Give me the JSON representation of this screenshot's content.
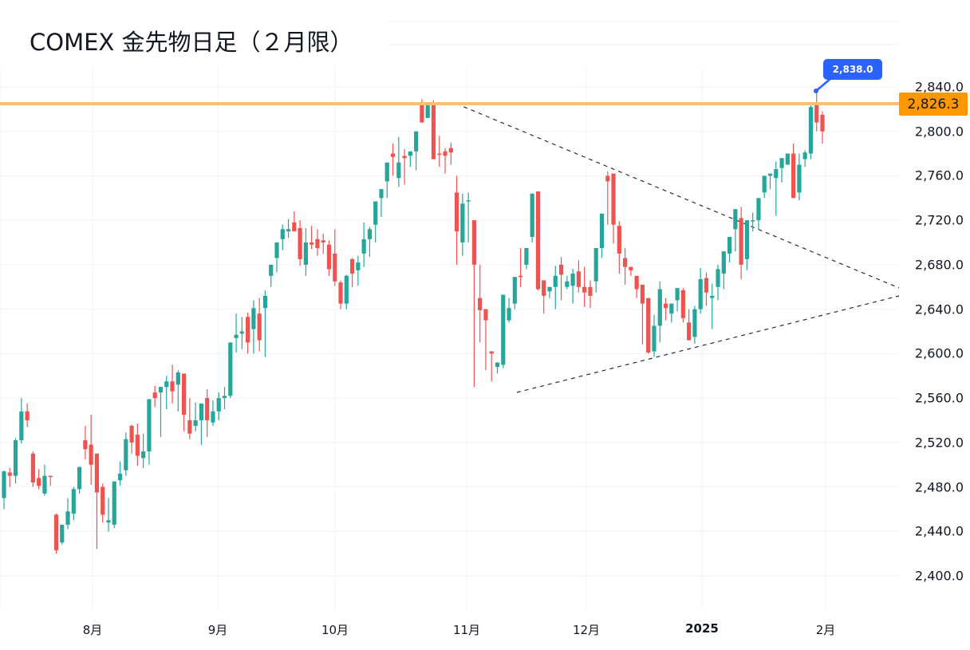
{
  "title": "COMEX 金先物日足（２月限）",
  "colors": {
    "up": "#26a69a",
    "down": "#ef5350",
    "resistance_line": "#ffc06b",
    "price_tag_bg": "#ff9800",
    "callout_bg": "#2962ff",
    "grid": "#f0f3fa",
    "trendline": "#2a2e39"
  },
  "price_scale": {
    "labels": [
      "2,840.0",
      "2,800.0",
      "2,760.0",
      "2,720.0",
      "2,680.0",
      "2,640.0",
      "2,600.0",
      "2,560.0",
      "2,520.0",
      "2,480.0",
      "2,440.0",
      "2,400.0"
    ],
    "current_price_tag": "2,826.3"
  },
  "time_scale": {
    "labels": [
      "8月",
      "9月",
      "10月",
      "11月",
      "12月",
      "2025",
      "2月"
    ]
  },
  "callout": {
    "label": "2,838.0"
  },
  "chart_data": {
    "type": "candlestick",
    "title": "COMEX 金先物日足（２月限）",
    "xlabel": "",
    "ylabel": "",
    "ylim": [
      2380,
      2860
    ],
    "y_ticks": [
      2400,
      2440,
      2480,
      2520,
      2560,
      2600,
      2640,
      2680,
      2720,
      2760,
      2800,
      2840
    ],
    "x_ticks": [
      "8月",
      "9月",
      "10月",
      "11月",
      "12月",
      "2025",
      "2月"
    ],
    "grid": true,
    "horizontal_line": {
      "price": 2826.3,
      "label": "2,826.3",
      "color": "#ffc06b"
    },
    "annotation": {
      "text": "2,838.0",
      "price": 2838.0,
      "type": "high marker"
    },
    "trendlines": [
      {
        "name": "upper (descending)",
        "from": {
          "x": "2024-10-30",
          "price": 2826
        },
        "to": {
          "x": "2025-02-20",
          "price": 2659
        }
      },
      {
        "name": "lower (ascending)",
        "from": {
          "x": "2024-11-14",
          "price": 2565
        },
        "to": {
          "x": "2025-02-20",
          "price": 2652
        }
      }
    ],
    "ohlc_approx": [
      [
        2470,
        2495,
        2460,
        2494
      ],
      [
        2493,
        2497,
        2480,
        2490
      ],
      [
        2490,
        2524,
        2483,
        2522
      ],
      [
        2522,
        2560,
        2519,
        2548
      ],
      [
        2548,
        2555,
        2534,
        2540
      ],
      [
        2510,
        2512,
        2480,
        2484
      ],
      [
        2488,
        2496,
        2478,
        2481
      ],
      [
        2474,
        2500,
        2472,
        2490
      ],
      [
        2490,
        2489,
        2481,
        2489
      ],
      [
        2455,
        2456,
        2420,
        2423
      ],
      [
        2430,
        2446,
        2428,
        2446
      ],
      [
        2446,
        2470,
        2442,
        2458
      ],
      [
        2456,
        2480,
        2450,
        2478
      ],
      [
        2478,
        2494,
        2474,
        2498
      ],
      [
        2522,
        2535,
        2505,
        2514
      ],
      [
        2518,
        2545,
        2482,
        2500
      ],
      [
        2510,
        2507,
        2424,
        2475
      ],
      [
        2480,
        2483,
        2448,
        2455
      ],
      [
        2448,
        2470,
        2440,
        2450
      ],
      [
        2446,
        2480,
        2443,
        2485
      ],
      [
        2486,
        2503,
        2481,
        2492
      ],
      [
        2495,
        2529,
        2490,
        2523
      ],
      [
        2535,
        2536,
        2510,
        2520
      ],
      [
        2527,
        2537,
        2499,
        2508
      ],
      [
        2506,
        2528,
        2497,
        2512
      ],
      [
        2512,
        2537,
        2500,
        2559
      ],
      [
        2565,
        2571,
        2552,
        2560
      ],
      [
        2565,
        2567,
        2525,
        2570
      ],
      [
        2570,
        2580,
        2550,
        2575
      ],
      [
        2575,
        2590,
        2555,
        2566
      ],
      [
        2572,
        2585,
        2548,
        2583
      ],
      [
        2582,
        2577,
        2530,
        2545
      ],
      [
        2540,
        2560,
        2523,
        2528
      ],
      [
        2535,
        2556,
        2530,
        2540
      ],
      [
        2540,
        2552,
        2518,
        2555
      ],
      [
        2560,
        2568,
        2525,
        2540
      ],
      [
        2538,
        2558,
        2535,
        2548
      ],
      [
        2548,
        2565,
        2540,
        2560
      ],
      [
        2560,
        2570,
        2550,
        2562
      ],
      [
        2562,
        2606,
        2560,
        2610
      ],
      [
        2614,
        2636,
        2601,
        2617
      ],
      [
        2618,
        2633,
        2604,
        2620
      ],
      [
        2633,
        2637,
        2600,
        2610
      ],
      [
        2622,
        2648,
        2600,
        2641
      ],
      [
        2636,
        2650,
        2602,
        2612
      ],
      [
        2641,
        2657,
        2597,
        2652
      ],
      [
        2670,
        2675,
        2660,
        2680
      ],
      [
        2686,
        2690,
        2673,
        2700
      ],
      [
        2703,
        2716,
        2693,
        2712
      ],
      [
        2710,
        2721,
        2704,
        2712
      ],
      [
        2718,
        2728,
        2715,
        2710
      ],
      [
        2713,
        2720,
        2679,
        2685
      ],
      [
        2680,
        2713,
        2670,
        2700
      ],
      [
        2700,
        2715,
        2694,
        2698
      ],
      [
        2703,
        2712,
        2688,
        2695
      ],
      [
        2702,
        2708,
        2690,
        2700
      ],
      [
        2698,
        2702,
        2670,
        2676
      ],
      [
        2690,
        2712,
        2661,
        2665
      ],
      [
        2664,
        2666,
        2640,
        2645
      ],
      [
        2645,
        2671,
        2640,
        2670
      ],
      [
        2685,
        2686,
        2660,
        2672
      ],
      [
        2675,
        2688,
        2661,
        2682
      ],
      [
        2690,
        2718,
        2678,
        2703
      ],
      [
        2703,
        2714,
        2687,
        2712
      ],
      [
        2716,
        2725,
        2700,
        2737
      ],
      [
        2740,
        2748,
        2723,
        2748
      ],
      [
        2755,
        2770,
        2740,
        2772
      ],
      [
        2780,
        2789,
        2760,
        2777
      ],
      [
        2758,
        2795,
        2750,
        2772
      ],
      [
        2778,
        2784,
        2752,
        2776
      ],
      [
        2778,
        2778,
        2768,
        2782
      ],
      [
        2782,
        2800,
        2765,
        2800
      ],
      [
        2826,
        2829,
        2810,
        2808
      ],
      [
        2812,
        2826,
        2815,
        2826
      ],
      [
        2826,
        2828,
        2780,
        2775
      ],
      [
        2780,
        2796,
        2768,
        2779
      ],
      [
        2782,
        2785,
        2762,
        2778
      ],
      [
        2785,
        2790,
        2770,
        2781
      ],
      [
        2745,
        2760,
        2680,
        2710
      ],
      [
        2700,
        2744,
        2688,
        2735
      ],
      [
        2738,
        2745,
        2700,
        2738
      ],
      [
        2720,
        2720,
        2570,
        2680
      ],
      [
        2650,
        2680,
        2610,
        2639
      ],
      [
        2640,
        2610,
        2585,
        2630
      ],
      [
        2602,
        2592,
        2575,
        2600
      ],
      [
        2588,
        2591,
        2582,
        2592
      ],
      [
        2590,
        2630,
        2587,
        2653
      ],
      [
        2630,
        2650,
        2628,
        2641
      ],
      [
        2645,
        2665,
        2640,
        2669
      ],
      [
        2670,
        2695,
        2660,
        2669
      ],
      [
        2680,
        2687,
        2676,
        2695
      ],
      [
        2705,
        2740,
        2700,
        2744
      ],
      [
        2746,
        2745,
        2657,
        2658
      ],
      [
        2666,
        2666,
        2636,
        2652
      ],
      [
        2656,
        2660,
        2650,
        2660
      ],
      [
        2660,
        2679,
        2640,
        2670
      ],
      [
        2680,
        2687,
        2648,
        2671
      ],
      [
        2660,
        2670,
        2658,
        2665
      ],
      [
        2661,
        2676,
        2645,
        2672
      ],
      [
        2674,
        2684,
        2655,
        2660
      ],
      [
        2660,
        2678,
        2642,
        2655
      ],
      [
        2660,
        2666,
        2641,
        2652
      ],
      [
        2665,
        2690,
        2655,
        2695
      ],
      [
        2695,
        2708,
        2686,
        2726
      ],
      [
        2760,
        2764,
        2716,
        2755
      ],
      [
        2762,
        2758,
        2699,
        2716
      ],
      [
        2715,
        2719,
        2672,
        2690
      ],
      [
        2686,
        2695,
        2662,
        2678
      ],
      [
        2678,
        2662,
        2670,
        2675
      ],
      [
        2670,
        2668,
        2650,
        2658
      ],
      [
        2662,
        2660,
        2608,
        2645
      ],
      [
        2650,
        2647,
        2600,
        2601
      ],
      [
        2602,
        2635,
        2597,
        2625
      ],
      [
        2625,
        2665,
        2610,
        2658
      ],
      [
        2645,
        2650,
        2630,
        2641
      ],
      [
        2636,
        2645,
        2628,
        2645
      ],
      [
        2648,
        2653,
        2638,
        2659
      ],
      [
        2657,
        2659,
        2628,
        2632
      ],
      [
        2628,
        2640,
        2614,
        2612
      ],
      [
        2615,
        2643,
        2609,
        2640
      ],
      [
        2640,
        2677,
        2636,
        2667
      ],
      [
        2668,
        2673,
        2643,
        2655
      ],
      [
        2650,
        2663,
        2622,
        2652
      ],
      [
        2660,
        2680,
        2648,
        2676
      ],
      [
        2672,
        2688,
        2658,
        2692
      ],
      [
        2690,
        2700,
        2682,
        2705
      ],
      [
        2712,
        2719,
        2692,
        2730
      ],
      [
        2722,
        2732,
        2667,
        2680
      ],
      [
        2685,
        2712,
        2675,
        2720
      ],
      [
        2720,
        2727,
        2710,
        2720
      ],
      [
        2720,
        2730,
        2712,
        2740
      ],
      [
        2745,
        2755,
        2740,
        2760
      ],
      [
        2760,
        2762,
        2748,
        2762
      ],
      [
        2758,
        2773,
        2724,
        2766
      ],
      [
        2767,
        2772,
        2754,
        2776
      ],
      [
        2770,
        2780,
        2770,
        2780
      ],
      [
        2780,
        2789,
        2748,
        2740
      ],
      [
        2745,
        2780,
        2738,
        2770
      ],
      [
        2775,
        2783,
        2768,
        2781
      ],
      [
        2780,
        2825,
        2775,
        2822
      ],
      [
        2826,
        2838,
        2800,
        2808
      ],
      [
        2815,
        2818,
        2789,
        2800
      ]
    ]
  }
}
